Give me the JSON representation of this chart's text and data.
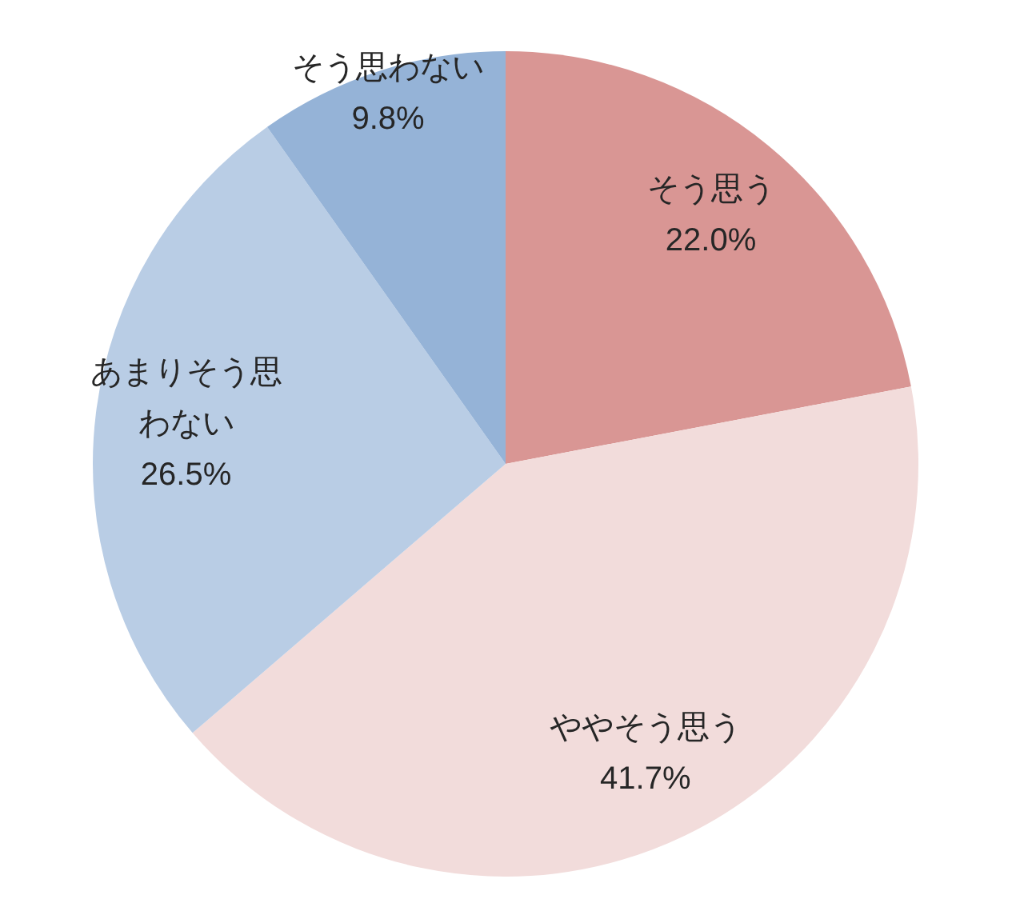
{
  "chart_data": {
    "type": "pie",
    "categories": [
      "そう思う",
      "ややそう思う",
      "あまりそう思わない",
      "そう思わない"
    ],
    "values": [
      22.0,
      41.7,
      26.5,
      9.8
    ],
    "colors": [
      "#d99694",
      "#f2dcdb",
      "#b9cde5",
      "#95b3d7"
    ],
    "value_labels": [
      "22.0%",
      "41.7%",
      "26.5%",
      "9.8%"
    ]
  }
}
